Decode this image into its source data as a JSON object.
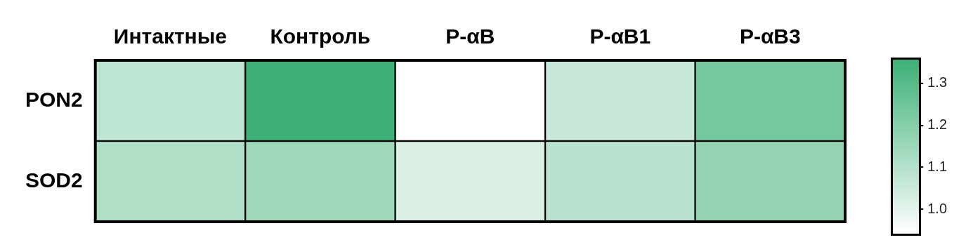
{
  "chart_data": {
    "type": "heatmap",
    "categories": [
      "Интактные",
      "Контроль",
      "P-αB",
      "P-αB1",
      "P-αB3"
    ],
    "y_categories": [
      "PON2",
      "SOD2"
    ],
    "cells": [
      [
        1.08,
        1.36,
        0.94,
        1.06,
        1.24
      ],
      [
        1.11,
        1.15,
        1.02,
        1.09,
        1.17
      ]
    ],
    "clim": [
      0.94,
      1.36
    ],
    "cticks": [
      {
        "value": 1,
        "label": "1.0"
      },
      1.1,
      1.2,
      1.3
    ]
  }
}
